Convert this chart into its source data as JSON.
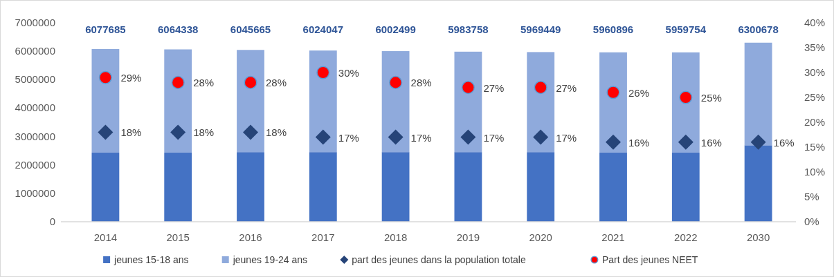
{
  "chart_data": {
    "type": "bar",
    "stacked": true,
    "categories": [
      "2014",
      "2015",
      "2016",
      "2017",
      "2018",
      "2019",
      "2020",
      "2021",
      "2022",
      "2030"
    ],
    "series": [
      {
        "name": "jeunes 15-18 ans",
        "color": "#4472c4",
        "values": [
          2430000,
          2430000,
          2450000,
          2450000,
          2450000,
          2450000,
          2450000,
          2430000,
          2430000,
          2690000
        ]
      },
      {
        "name": "jeunes 19-24 ans",
        "color": "#8faadc",
        "values": [
          3647685,
          3634338,
          3595665,
          3574047,
          3552499,
          3533758,
          3519449,
          3530896,
          3529754,
          3610678
        ]
      },
      {
        "name": "part des jeunes dans la population totale",
        "type": "scatter",
        "axis": "y2",
        "marker": "diamond",
        "color": "#264478",
        "values": [
          18,
          18,
          18,
          17,
          17,
          17,
          17,
          16,
          16,
          16
        ],
        "value_labels": [
          "18%",
          "18%",
          "18%",
          "17%",
          "17%",
          "17%",
          "17%",
          "16%",
          "16%",
          "16%"
        ]
      },
      {
        "name": "Part des jeunes NEET",
        "type": "scatter",
        "axis": "y2",
        "marker": "circle",
        "color": "#ff0000",
        "values": [
          29,
          28,
          28,
          30,
          28,
          27,
          27,
          26,
          25,
          null
        ],
        "value_labels": [
          "29%",
          "28%",
          "28%",
          "30%",
          "28%",
          "27%",
          "27%",
          "26%",
          "25%",
          null
        ]
      }
    ],
    "totals": [
      "6077685",
      "6064338",
      "6045665",
      "6024047",
      "6002499",
      "5983758",
      "5969449",
      "5960896",
      "5959754",
      "6300678"
    ],
    "ylim": [
      0,
      7000000
    ],
    "yticks": [
      {
        "value": 0,
        "label": "0"
      },
      {
        "value": 1000000,
        "label": "1000000"
      },
      {
        "value": 2000000,
        "label": "2000000"
      },
      {
        "value": 3000000,
        "label": "3000000"
      },
      {
        "value": 4000000,
        "label": "4000000"
      },
      {
        "value": 5000000,
        "label": "5000000"
      },
      {
        "value": 6000000,
        "label": "6000000"
      },
      {
        "value": 7000000,
        "label": "7000000"
      }
    ],
    "y2lim": [
      0,
      40
    ],
    "y2ticks": [
      {
        "value": 0,
        "label": "0%"
      },
      {
        "value": 5,
        "label": "5%"
      },
      {
        "value": 10,
        "label": "10%"
      },
      {
        "value": 15,
        "label": "15%"
      },
      {
        "value": 20,
        "label": "20%"
      },
      {
        "value": 25,
        "label": "25%"
      },
      {
        "value": 30,
        "label": "30%"
      },
      {
        "value": 35,
        "label": "35%"
      },
      {
        "value": 40,
        "label": "40%"
      }
    ],
    "grid": false,
    "legend": "bottom"
  }
}
